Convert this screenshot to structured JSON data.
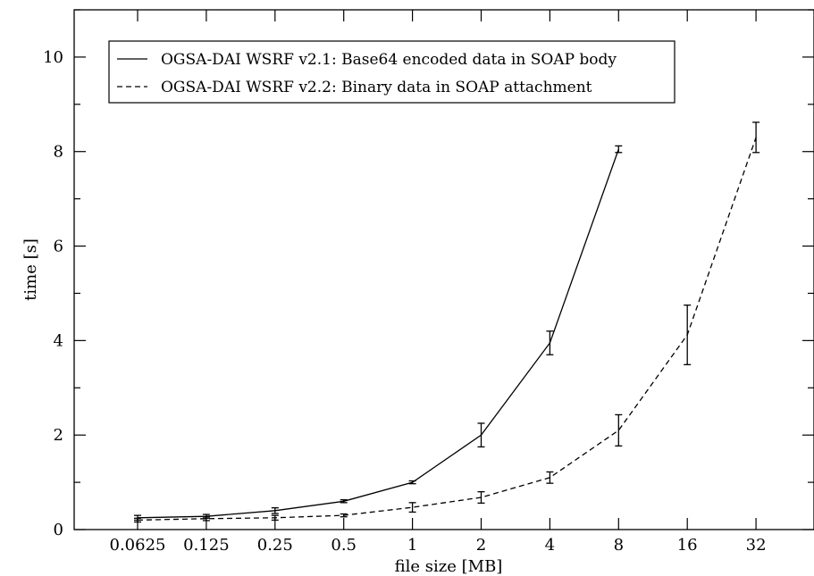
{
  "chart_data": {
    "type": "line",
    "xlabel": "file size [MB]",
    "ylabel": "time [s]",
    "x_scale": "log2",
    "categories": [
      "0.0625",
      "0.125",
      "0.25",
      "0.5",
      "1",
      "2",
      "4",
      "8",
      "16",
      "32"
    ],
    "ylim": [
      0,
      11
    ],
    "yticks": [
      0,
      2,
      4,
      6,
      8,
      10
    ],
    "grid": false,
    "legend_position": "top-left",
    "series": [
      {
        "name": "OGSA-DAI WSRF v2.1: Base64 encoded data in SOAP body",
        "line_style": "solid",
        "color": "#000000",
        "points": [
          {
            "x": "0.0625",
            "y": 0.25,
            "err": 0.05
          },
          {
            "x": "0.125",
            "y": 0.28,
            "err": 0.04
          },
          {
            "x": "0.25",
            "y": 0.4,
            "err": 0.06
          },
          {
            "x": "0.5",
            "y": 0.6,
            "err": 0.03
          },
          {
            "x": "1",
            "y": 1.0,
            "err": 0.03
          },
          {
            "x": "2",
            "y": 2.0,
            "err": 0.25
          },
          {
            "x": "4",
            "y": 3.95,
            "err": 0.25
          },
          {
            "x": "8",
            "y": 8.05,
            "err": 0.07
          }
        ]
      },
      {
        "name": "OGSA-DAI WSRF v2.2: Binary data in SOAP attachment",
        "line_style": "dashed",
        "color": "#000000",
        "points": [
          {
            "x": "0.0625",
            "y": 0.2,
            "err": 0.04
          },
          {
            "x": "0.125",
            "y": 0.23,
            "err": 0.04
          },
          {
            "x": "0.25",
            "y": 0.25,
            "err": 0.05
          },
          {
            "x": "0.5",
            "y": 0.3,
            "err": 0.03
          },
          {
            "x": "1",
            "y": 0.47,
            "err": 0.1
          },
          {
            "x": "2",
            "y": 0.68,
            "err": 0.12
          },
          {
            "x": "4",
            "y": 1.1,
            "err": 0.12
          },
          {
            "x": "8",
            "y": 2.1,
            "err": 0.33
          },
          {
            "x": "16",
            "y": 4.12,
            "err": 0.63
          },
          {
            "x": "32",
            "y": 8.3,
            "err": 0.32
          }
        ]
      }
    ]
  }
}
